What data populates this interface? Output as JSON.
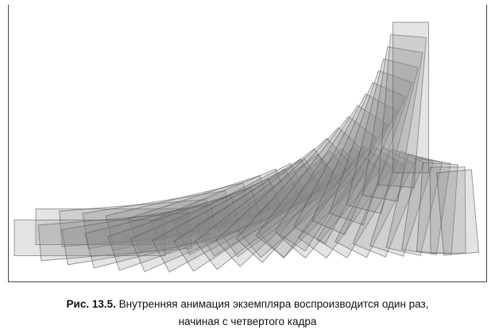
{
  "caption": {
    "label": "Рис. 13.5.",
    "lines": [
      "Внутренняя анимация экземпляра воспроизводится один раз,",
      "начиная с четвертого кадра"
    ]
  }
}
